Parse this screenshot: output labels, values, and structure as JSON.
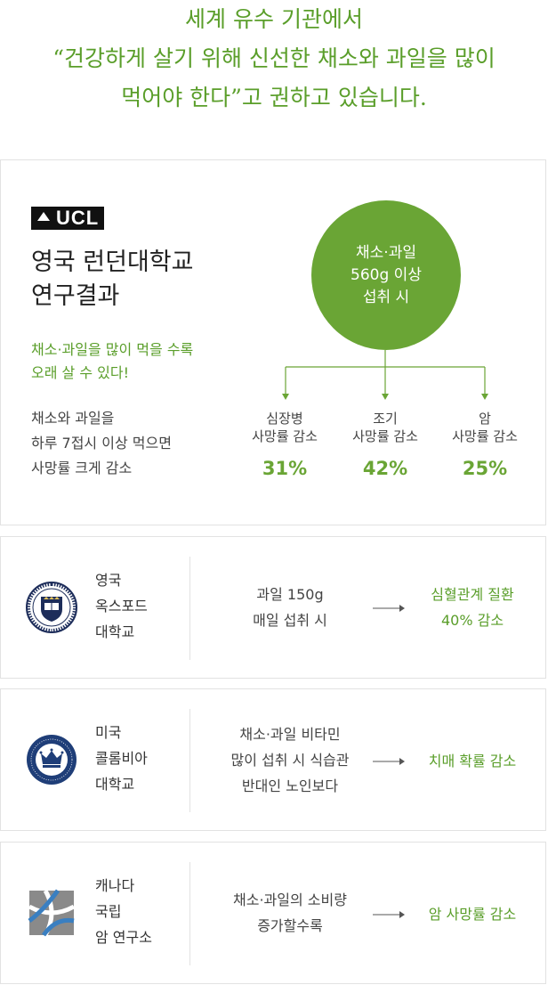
{
  "heading": {
    "line1": "세계 유수 기관에서",
    "line2": "“건강하게 살기 위해 신선한 채소와 과일을 많이",
    "line3": "먹어야 한다”고 권하고 있습니다."
  },
  "ucl": {
    "logo_text": "UCL",
    "title_line1": "영국 런던대학교",
    "title_line2": "연구결과",
    "subtitle_line1": "채소·과일을 많이 먹을 수록",
    "subtitle_line2": "오래 살 수 있다!",
    "desc_line1": "채소와 과일을",
    "desc_line2": "하루 7접시 이상 먹으면",
    "desc_line3": "사망률 크게 감소",
    "circle_line1": "채소·과일",
    "circle_line2": "560g 이상",
    "circle_line3": "섭취 시",
    "stats": [
      {
        "label_line1": "심장병",
        "label_line2": "사망률 감소",
        "value": "31%"
      },
      {
        "label_line1": "조기",
        "label_line2": "사망률 감소",
        "value": "42%"
      },
      {
        "label_line1": "암",
        "label_line2": "사망률 감소",
        "value": "25%"
      }
    ]
  },
  "studies": [
    {
      "icon": "oxford-crest-icon",
      "name_line1": "영국",
      "name_line2": "옥스포드",
      "name_line3": "대학교",
      "condition_line1": "과일 150g",
      "condition_line2": "매일 섭취 시",
      "condition_line3": "",
      "result_line1": "심혈관계 질환",
      "result_line2": "40% 감소"
    },
    {
      "icon": "columbia-crown-seal-icon",
      "name_line1": "미국",
      "name_line2": "콜롬비아",
      "name_line3": "대학교",
      "condition_line1": "채소·과일 비타민",
      "condition_line2": "많이 섭취 시 식습관",
      "condition_line3": "반대인 노인보다",
      "result_line1": "치매 확률 감소",
      "result_line2": ""
    },
    {
      "icon": "canada-cancer-institute-logo-icon",
      "name_line1": "캐나다",
      "name_line2": "국립",
      "name_line3": "암 연구소",
      "condition_line1": "채소·과일의 소비량",
      "condition_line2": "증가할수록",
      "condition_line3": "",
      "result_line1": "암 사망률 감소",
      "result_line2": ""
    }
  ],
  "colors": {
    "accent_green": "#6aa535",
    "text_green": "#5a9e2a",
    "border": "#e2e2e2",
    "oxford_navy": "#1d2d5a",
    "columbia_navy": "#1f3e78",
    "canada_gray": "#8a8a8a",
    "canada_blue": "#3a7fc1"
  }
}
